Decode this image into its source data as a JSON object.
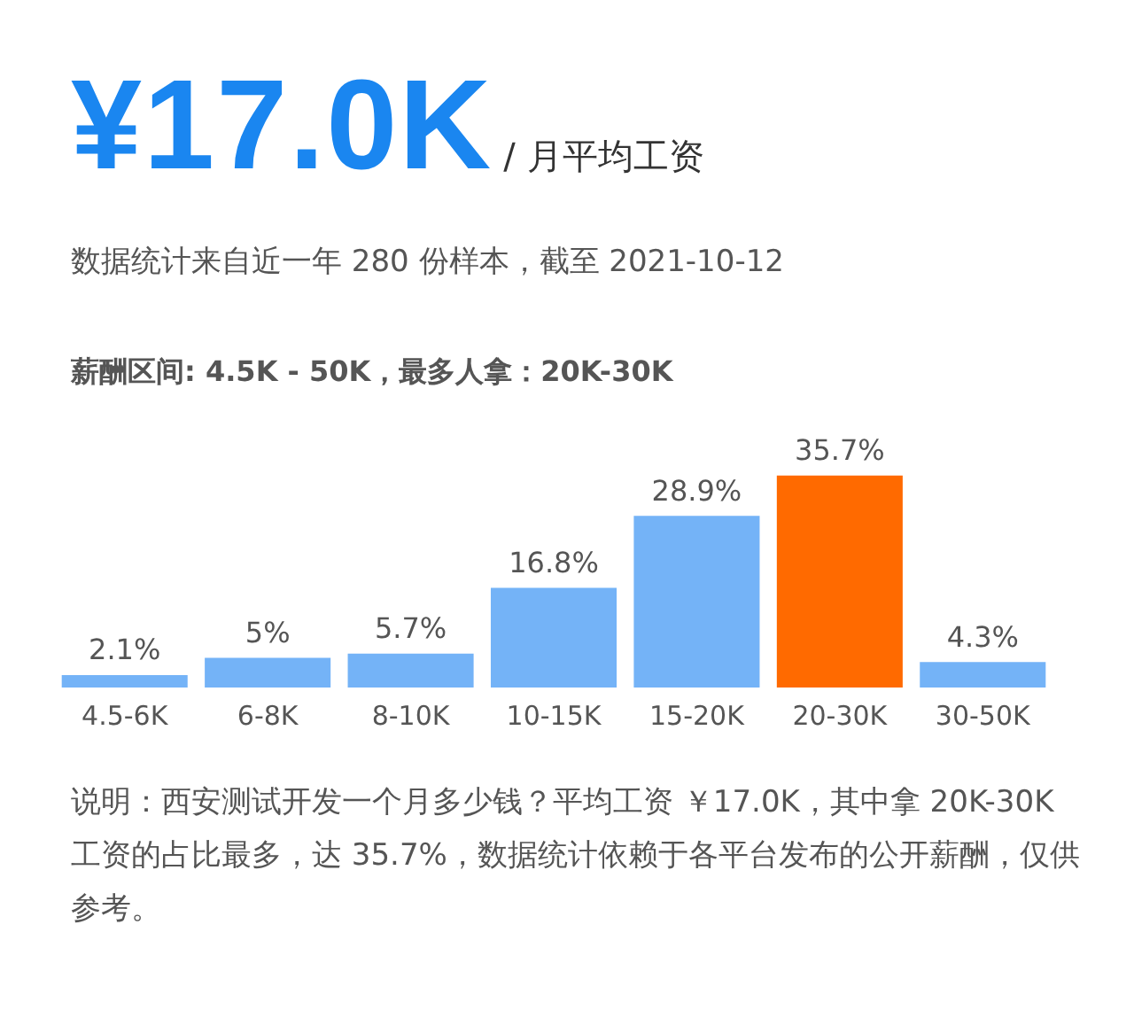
{
  "chart_data": {
    "type": "bar",
    "title": "¥17.0K",
    "subtitle": "/ 月平均工资",
    "annotations": [
      "数据统计来自近一年 280 份样本，截至 2021-10-12",
      "薪酬区间: 4.5K - 50K，最多人拿：20K-30K",
      "说明：西安测试开发一个月多少钱？平均工资 ￥17.0K，其中拿 20K-30K 工资的占比最多，达 35.7%，数据统计依赖于各平台发布的公开薪酬，仅供参考。"
    ],
    "categories": [
      "4.5-6K",
      "6-8K",
      "8-10K",
      "10-15K",
      "15-20K",
      "20-30K",
      "30-50K"
    ],
    "values": [
      2.1,
      5,
      5.7,
      16.8,
      28.9,
      35.7,
      4.3
    ],
    "colors": [
      "#74b3f7",
      "#74b3f7",
      "#74b3f7",
      "#74b3f7",
      "#74b3f7",
      "#ff6a00",
      "#74b3f7"
    ],
    "value_labels": [
      "2.1%",
      "5%",
      "5.7%",
      "16.8%",
      "28.9%",
      "35.7%",
      "4.3%"
    ],
    "grid": false,
    "tick_labels": "x"
  }
}
